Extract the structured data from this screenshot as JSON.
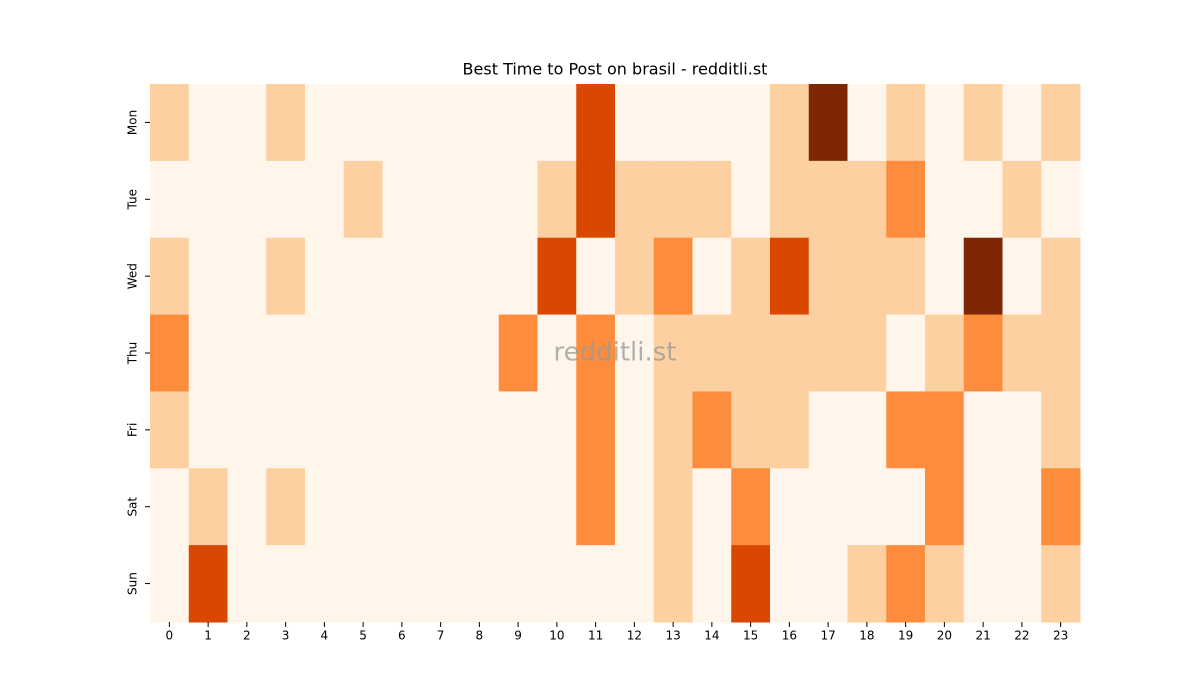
{
  "chart_data": {
    "type": "heatmap",
    "title": "Best Time to Post on brasil - redditli.st",
    "watermark": "redditli.st",
    "x": [
      0,
      1,
      2,
      3,
      4,
      5,
      6,
      7,
      8,
      9,
      10,
      11,
      12,
      13,
      14,
      15,
      16,
      17,
      18,
      19,
      20,
      21,
      22,
      23
    ],
    "y": [
      "Mon",
      "Tue",
      "Wed",
      "Thu",
      "Fri",
      "Sat",
      "Sun"
    ],
    "zlim": [
      0,
      4
    ],
    "colors": [
      "#fff5eb",
      "#fdd0a2",
      "#fd8d3c",
      "#d94801",
      "#7f2704"
    ],
    "z": [
      [
        1,
        0,
        0,
        1,
        0,
        0,
        0,
        0,
        0,
        0,
        0,
        3,
        0,
        0,
        0,
        0,
        1,
        4,
        0,
        1,
        0,
        1,
        0,
        1
      ],
      [
        0,
        0,
        0,
        0,
        0,
        1,
        0,
        0,
        0,
        0,
        1,
        3,
        1,
        1,
        1,
        0,
        1,
        1,
        1,
        2,
        0,
        0,
        1,
        0
      ],
      [
        1,
        0,
        0,
        1,
        0,
        0,
        0,
        0,
        0,
        0,
        3,
        0,
        1,
        2,
        0,
        1,
        3,
        1,
        1,
        1,
        0,
        4,
        0,
        1
      ],
      [
        2,
        0,
        0,
        0,
        0,
        0,
        0,
        0,
        0,
        2,
        0,
        2,
        0,
        1,
        1,
        1,
        1,
        1,
        1,
        0,
        1,
        2,
        1,
        1
      ],
      [
        1,
        0,
        0,
        0,
        0,
        0,
        0,
        0,
        0,
        0,
        0,
        2,
        0,
        1,
        2,
        1,
        1,
        0,
        0,
        2,
        2,
        0,
        0,
        1
      ],
      [
        0,
        1,
        0,
        1,
        0,
        0,
        0,
        0,
        0,
        0,
        0,
        2,
        0,
        1,
        0,
        2,
        0,
        0,
        0,
        0,
        2,
        0,
        0,
        2
      ],
      [
        0,
        3,
        0,
        0,
        0,
        0,
        0,
        0,
        0,
        0,
        0,
        0,
        0,
        1,
        0,
        3,
        0,
        0,
        1,
        2,
        1,
        0,
        0,
        1
      ]
    ]
  }
}
